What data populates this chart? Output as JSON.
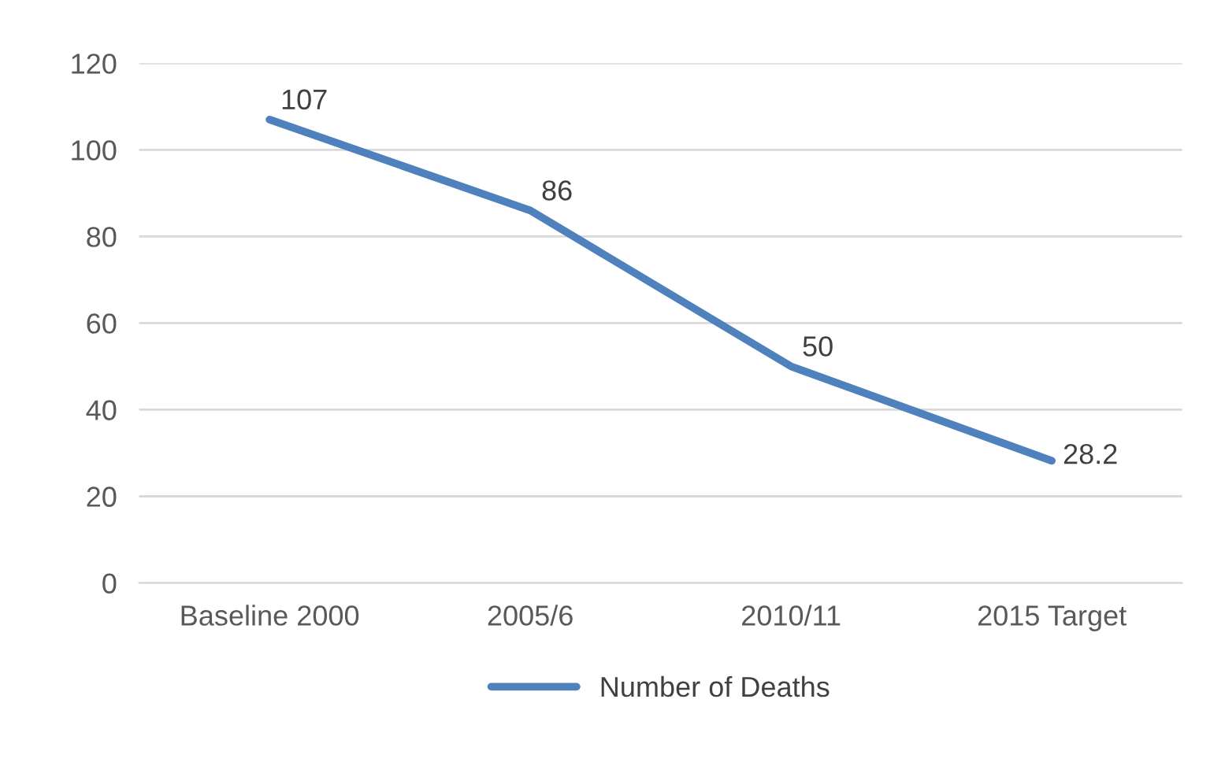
{
  "chart_data": {
    "type": "line",
    "categories": [
      "Baseline 2000",
      "2005/6",
      "2010/11",
      "2015 Target"
    ],
    "series": [
      {
        "name": "Number of Deaths",
        "color": "#4f81bd",
        "values": [
          107,
          86,
          50,
          28.2
        ]
      }
    ],
    "ylim": [
      0,
      120
    ],
    "yticks": [
      0,
      20,
      40,
      60,
      80,
      100,
      120
    ],
    "grid": "y",
    "legend": "bottom",
    "data_labels": true,
    "marker": "none",
    "line_style": "solid"
  }
}
